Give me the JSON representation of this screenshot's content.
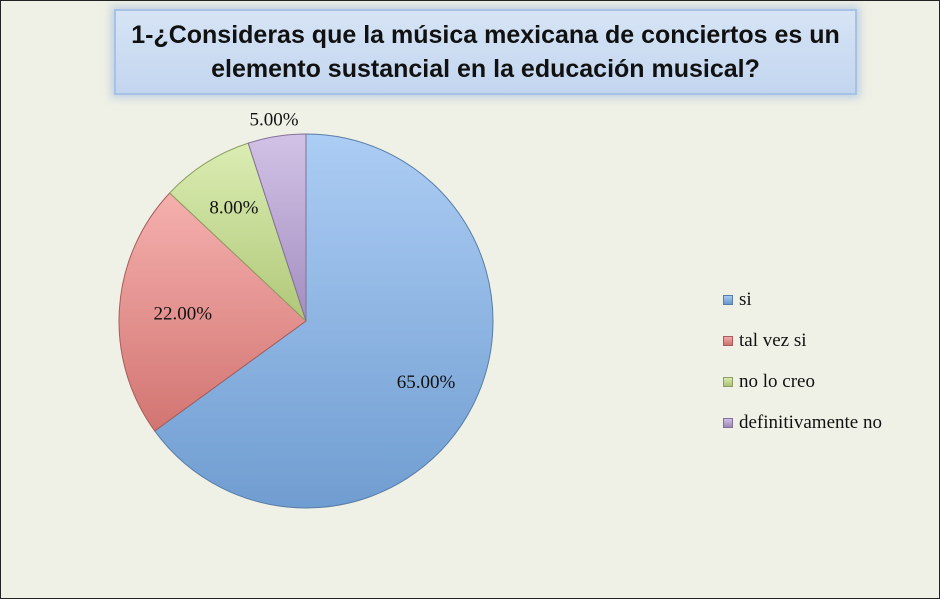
{
  "chart_data": {
    "type": "pie",
    "title": "1-¿Consideras que la música mexicana de conciertos es un\nelemento sustancial en la educación musical?",
    "categories": [
      "si",
      "tal vez si",
      "no lo creo",
      "definitivamente no"
    ],
    "values": [
      65,
      22,
      8,
      5
    ],
    "data_labels": [
      "65.00%",
      "22.00%",
      "8.00%",
      "5.00%"
    ],
    "colors": [
      "#7fb2ee",
      "#ef8582",
      "#c8e38a",
      "#b9a1d9"
    ],
    "legend_position": "right"
  }
}
